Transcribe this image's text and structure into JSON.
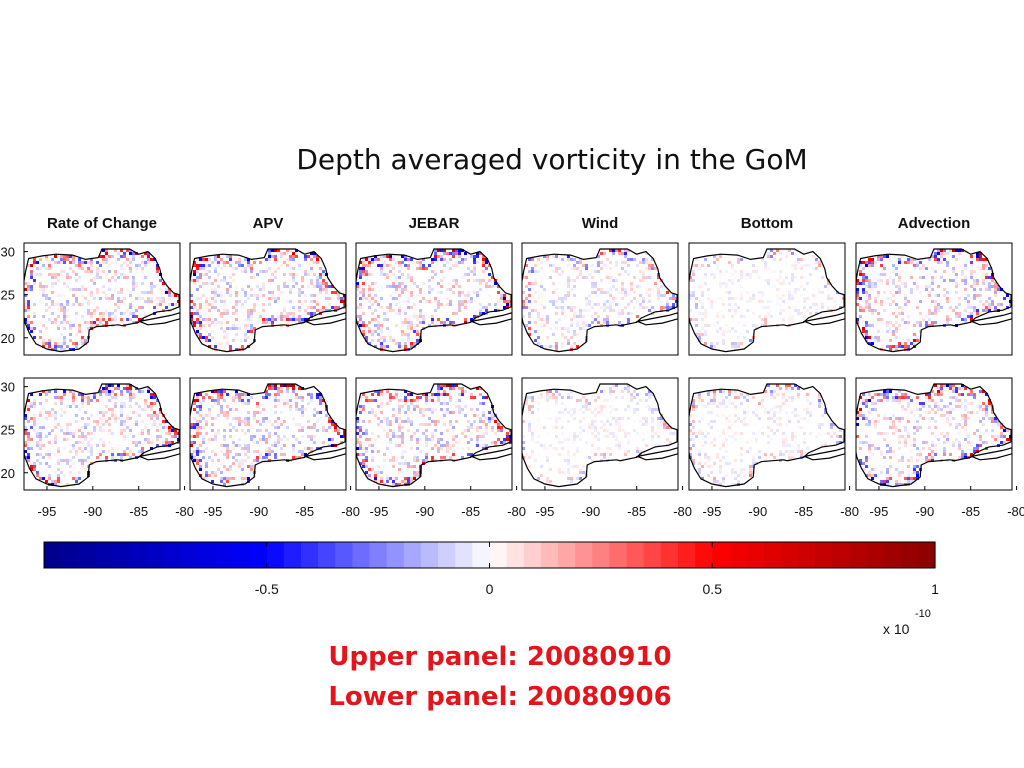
{
  "slide": {
    "title": "Depth averaged vorticity in the GoM",
    "caption_upper": "Upper panel: 20080910",
    "caption_lower": "Lower panel: 20080906"
  },
  "figure": {
    "panel_titles": [
      "Rate of Change",
      "APV",
      "JEBAR",
      "Wind",
      "Bottom",
      "Advection"
    ],
    "rows": [
      "upper",
      "lower"
    ],
    "lat_ticks": [
      "30",
      "25",
      "20"
    ],
    "lon_ticks": [
      "-95",
      "-90",
      "-85",
      "-80"
    ],
    "land_color": "#ffffff",
    "coast_color": "#000000",
    "panel_noise": [
      {
        "name": "Rate of Change",
        "level": [
          0.8,
          0.75
        ]
      },
      {
        "name": "APV",
        "level": [
          0.85,
          0.85
        ]
      },
      {
        "name": "JEBAR",
        "level": [
          0.85,
          0.85
        ]
      },
      {
        "name": "Wind",
        "level": [
          0.55,
          0.3
        ]
      },
      {
        "name": "Bottom",
        "level": [
          0.3,
          0.35
        ]
      },
      {
        "name": "Advection",
        "level": [
          0.85,
          0.8
        ]
      }
    ]
  },
  "colorbar": {
    "tick_labels": [
      "-0.5",
      "0",
      "0.5",
      "1"
    ],
    "tick_values": [
      -0.5,
      0,
      0.5,
      1
    ],
    "range": [
      -1,
      1
    ],
    "multiplier_base": "x 10",
    "multiplier_exponent": "-10",
    "colormap": [
      "#00008b",
      "#0000ff",
      "#ffffff",
      "#ff0000",
      "#8b0000"
    ]
  }
}
